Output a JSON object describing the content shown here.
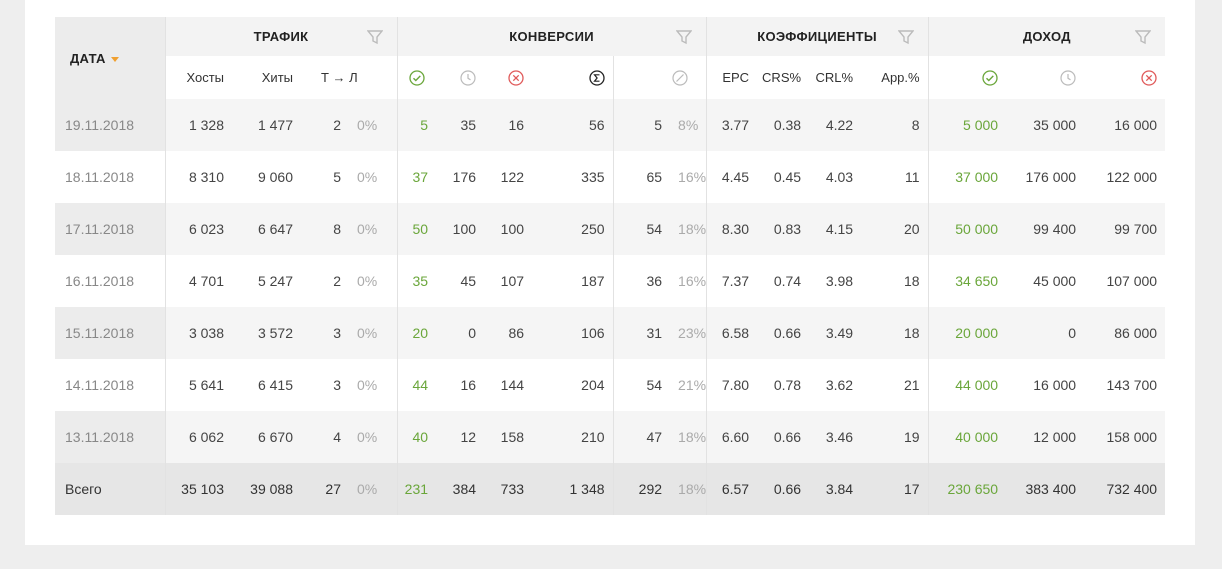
{
  "header": {
    "date": "ДАТА",
    "traffic": "ТРАФИК",
    "conversions": "КОНВЕРСИИ",
    "coefficients": "КОЭФФИЦИЕНТЫ",
    "income": "ДОХОД"
  },
  "subheader": {
    "hosts": "Хосты",
    "hits": "Хиты",
    "t_to_l": "Т → Л",
    "epc": "EPC",
    "crs": "CRS%",
    "crl": "CRL%",
    "app": "App.%"
  },
  "rows": [
    {
      "date": "19.11.2018",
      "hosts": "1 328",
      "hits": "1 477",
      "tl": "2",
      "tlp": "0%",
      "ok": "5",
      "wait": "35",
      "rej": "16",
      "sum": "56",
      "trash": "5",
      "trashp": "8%",
      "epc": "3.77",
      "crs": "0.38",
      "crl": "4.22",
      "app": "8",
      "inc_ok": "5 000",
      "inc_wait": "35 000",
      "inc_rej": "16 000"
    },
    {
      "date": "18.11.2018",
      "hosts": "8 310",
      "hits": "9 060",
      "tl": "5",
      "tlp": "0%",
      "ok": "37",
      "wait": "176",
      "rej": "122",
      "sum": "335",
      "trash": "65",
      "trashp": "16%",
      "epc": "4.45",
      "crs": "0.45",
      "crl": "4.03",
      "app": "11",
      "inc_ok": "37 000",
      "inc_wait": "176 000",
      "inc_rej": "122 000"
    },
    {
      "date": "17.11.2018",
      "hosts": "6 023",
      "hits": "6 647",
      "tl": "8",
      "tlp": "0%",
      "ok": "50",
      "wait": "100",
      "rej": "100",
      "sum": "250",
      "trash": "54",
      "trashp": "18%",
      "epc": "8.30",
      "crs": "0.83",
      "crl": "4.15",
      "app": "20",
      "inc_ok": "50 000",
      "inc_wait": "99 400",
      "inc_rej": "99 700"
    },
    {
      "date": "16.11.2018",
      "hosts": "4 701",
      "hits": "5 247",
      "tl": "2",
      "tlp": "0%",
      "ok": "35",
      "wait": "45",
      "rej": "107",
      "sum": "187",
      "trash": "36",
      "trashp": "16%",
      "epc": "7.37",
      "crs": "0.74",
      "crl": "3.98",
      "app": "18",
      "inc_ok": "34 650",
      "inc_wait": "45 000",
      "inc_rej": "107 000"
    },
    {
      "date": "15.11.2018",
      "hosts": "3 038",
      "hits": "3 572",
      "tl": "3",
      "tlp": "0%",
      "ok": "20",
      "wait": "0",
      "rej": "86",
      "sum": "106",
      "trash": "31",
      "trashp": "23%",
      "epc": "6.58",
      "crs": "0.66",
      "crl": "3.49",
      "app": "18",
      "inc_ok": "20 000",
      "inc_wait": "0",
      "inc_rej": "86 000"
    },
    {
      "date": "14.11.2018",
      "hosts": "5 641",
      "hits": "6 415",
      "tl": "3",
      "tlp": "0%",
      "ok": "44",
      "wait": "16",
      "rej": "144",
      "sum": "204",
      "trash": "54",
      "trashp": "21%",
      "epc": "7.80",
      "crs": "0.78",
      "crl": "3.62",
      "app": "21",
      "inc_ok": "44 000",
      "inc_wait": "16 000",
      "inc_rej": "143 700"
    },
    {
      "date": "13.11.2018",
      "hosts": "6 062",
      "hits": "6 670",
      "tl": "4",
      "tlp": "0%",
      "ok": "40",
      "wait": "12",
      "rej": "158",
      "sum": "210",
      "trash": "47",
      "trashp": "18%",
      "epc": "6.60",
      "crs": "0.66",
      "crl": "3.46",
      "app": "19",
      "inc_ok": "40 000",
      "inc_wait": "12 000",
      "inc_rej": "158 000"
    }
  ],
  "total": {
    "date": "Всего",
    "hosts": "35 103",
    "hits": "39 088",
    "tl": "27",
    "tlp": "0%",
    "ok": "231",
    "wait": "384",
    "rej": "733",
    "sum": "1 348",
    "trash": "292",
    "trashp": "18%",
    "epc": "6.57",
    "crs": "0.66",
    "crl": "3.84",
    "app": "17",
    "inc_ok": "230 650",
    "inc_wait": "383 400",
    "inc_rej": "732 400"
  },
  "colors": {
    "approved": "#6aa63a",
    "rejected": "#e05a5a",
    "sort_arrow": "#f0a030"
  },
  "icons": [
    "check-circle-icon",
    "clock-icon",
    "x-circle-icon",
    "sigma-circle-icon",
    "slash-circle-icon",
    "filter-icon",
    "sort-down-icon"
  ]
}
